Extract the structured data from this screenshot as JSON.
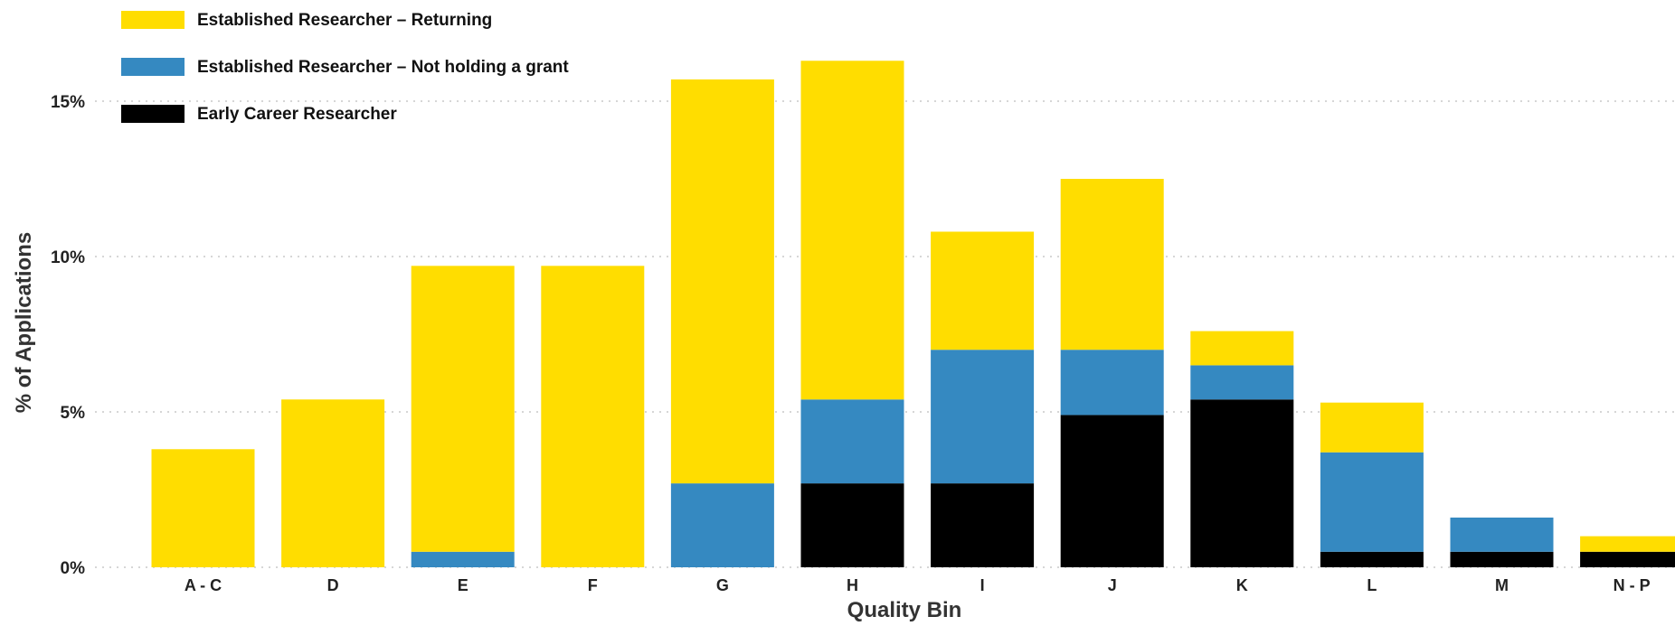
{
  "chart_data": {
    "type": "bar",
    "stacked": true,
    "title": "",
    "xlabel": "Quality Bin",
    "ylabel": "% of Applications",
    "ylim": [
      0,
      17
    ],
    "y_ticks": [
      0,
      5,
      10,
      15
    ],
    "y_tick_labels": [
      "0%",
      "5%",
      "10%",
      "15%"
    ],
    "grid": "horizontal dotted",
    "legend_position": "top-left",
    "categories": [
      "A - C",
      "D",
      "E",
      "F",
      "G",
      "H",
      "I",
      "J",
      "K",
      "L",
      "M",
      "N - P"
    ],
    "series": [
      {
        "name": "Early Career Researcher",
        "color": "#000000",
        "values": [
          0,
          0,
          0,
          0,
          0,
          2.7,
          2.7,
          4.9,
          5.4,
          0.5,
          0.5,
          0.5
        ]
      },
      {
        "name": "Established Researcher – Not holding a grant",
        "color": "#3589C1",
        "values": [
          0,
          0,
          0.5,
          0,
          2.7,
          2.7,
          4.3,
          2.1,
          1.1,
          3.2,
          1.1,
          0
        ]
      },
      {
        "name": "Established Researcher – Returning",
        "color": "#FFDD00",
        "values": [
          3.8,
          5.4,
          9.2,
          9.7,
          13.0,
          10.9,
          3.8,
          5.5,
          1.1,
          1.6,
          0,
          0.5
        ]
      }
    ],
    "legend_order": [
      2,
      1,
      0
    ]
  }
}
